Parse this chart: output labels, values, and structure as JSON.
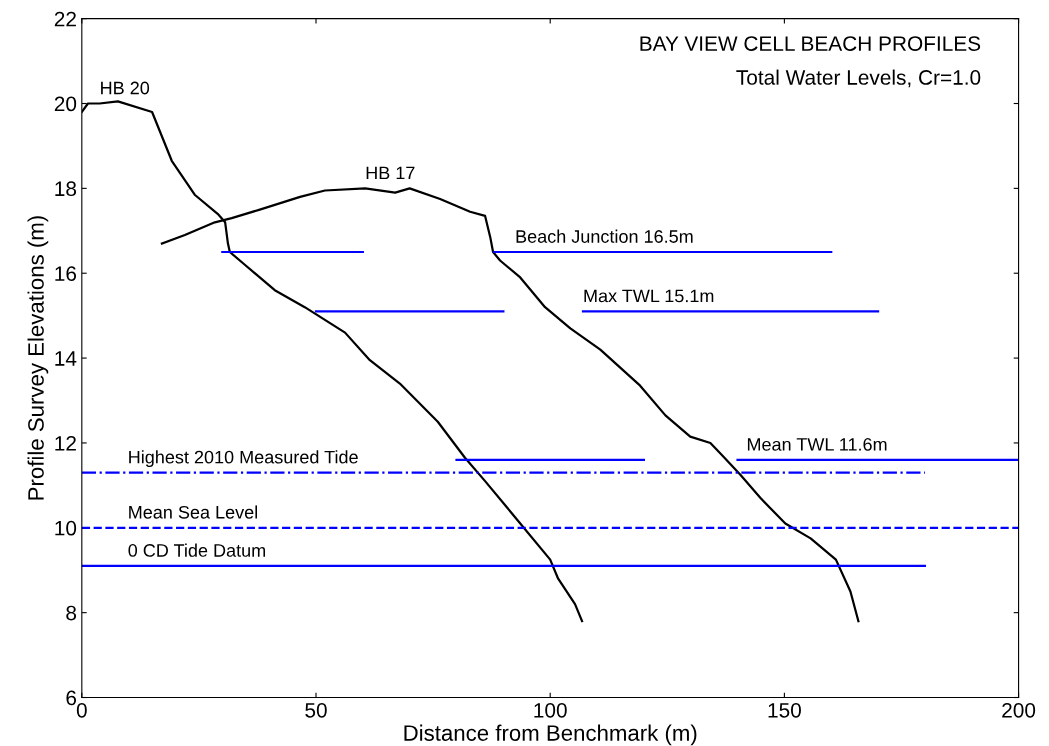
{
  "chart_data": {
    "type": "line",
    "title": "BAY VIEW CELL BEACH PROFILES",
    "subtitle": "Total Water Levels, Cr=1.0",
    "xlabel": "Distance from Benchmark (m)",
    "ylabel": "Profile Survey Elevations (m)",
    "xlim": [
      0,
      200
    ],
    "xticks": [
      0,
      50,
      100,
      150,
      200
    ],
    "ylim": [
      6,
      22
    ],
    "yticks": [
      6,
      8,
      10,
      12,
      14,
      16,
      18,
      20,
      22
    ],
    "grid": false,
    "legend": false,
    "marker": "none",
    "series": [
      {
        "color": "#000000",
        "line_style": "solid",
        "x": [
          0,
          1.3,
          3.8,
          7.7,
          15,
          19.2,
          24.1,
          29,
          30.6,
          31.2,
          31.6,
          34.8,
          41.2,
          47.6,
          56.2,
          61.5,
          67.9,
          76,
          81.8,
          86.1,
          92.5,
          100,
          101.7,
          105.3,
          106.8
        ],
        "values": [
          19.8,
          20.0,
          20.0,
          20.05,
          19.8,
          18.65,
          17.85,
          17.4,
          17.2,
          16.7,
          16.5,
          16.2,
          15.6,
          15.2,
          14.6,
          13.95,
          13.4,
          12.5,
          11.65,
          11.1,
          10.25,
          9.25,
          8.8,
          8.2,
          7.8
        ]
      },
      {
        "color": "#000000",
        "line_style": "solid",
        "x": [
          17.1,
          22,
          28.4,
          32,
          38,
          46.6,
          51.9,
          60.5,
          66.9,
          70,
          76.5,
          82.9,
          86.1,
          87.2,
          87.8,
          89.3,
          93.6,
          98.9,
          104.3,
          110.7,
          119.2,
          124.6,
          129.9,
          134.2,
          136.8,
          140.6,
          144.9,
          150.2,
          155.6,
          161,
          164.1,
          165.8
        ],
        "values": [
          16.7,
          16.9,
          17.2,
          17.3,
          17.5,
          17.8,
          17.95,
          18.0,
          17.9,
          18.0,
          17.75,
          17.45,
          17.35,
          16.85,
          16.5,
          16.3,
          15.9,
          15.2,
          14.7,
          14.2,
          13.35,
          12.65,
          12.15,
          12.0,
          11.7,
          11.25,
          10.7,
          10.1,
          9.75,
          9.25,
          8.5,
          7.8
        ]
      },
      {
        "color": "#0000ff",
        "line_style": "solid",
        "x": [
          30,
          60
        ],
        "values": [
          16.5,
          16.5
        ]
      },
      {
        "color": "#0000ff",
        "line_style": "solid",
        "x": [
          88,
          160
        ],
        "values": [
          16.5,
          16.5
        ]
      },
      {
        "color": "#0000ff",
        "line_style": "solid",
        "x": [
          50,
          90
        ],
        "values": [
          15.1,
          15.1
        ]
      },
      {
        "color": "#0000ff",
        "line_style": "solid",
        "x": [
          107,
          170
        ],
        "values": [
          15.1,
          15.1
        ]
      },
      {
        "color": "#0000ff",
        "line_style": "solid",
        "x": [
          80,
          120
        ],
        "values": [
          11.6,
          11.6
        ]
      },
      {
        "color": "#0000ff",
        "line_style": "solid",
        "x": [
          140,
          200
        ],
        "values": [
          11.6,
          11.6
        ]
      },
      {
        "color": "#0000ff",
        "line_style": "dashdot",
        "x": [
          0,
          180
        ],
        "values": [
          11.3,
          11.3
        ]
      },
      {
        "color": "#0000ff",
        "line_style": "dashed",
        "x": [
          0,
          200
        ],
        "values": [
          10.0,
          10.0
        ]
      },
      {
        "color": "#0000ff",
        "line_style": "solid",
        "x": [
          0,
          180
        ],
        "values": [
          9.1,
          9.1
        ]
      }
    ],
    "annotations": [
      {
        "text": "HB 20",
        "x": 3.8,
        "y": 20.0
      },
      {
        "text": "HB 17",
        "x": 60.5,
        "y": 18.0
      },
      {
        "text": "Beach Junction 16.5m",
        "x": 92.5,
        "y": 16.5
      },
      {
        "text": "Max TWL 15.1m",
        "x": 107,
        "y": 15.1
      },
      {
        "text": "Mean TWL 11.6m",
        "x": 141.9,
        "y": 11.6
      },
      {
        "text": "Highest 2010 Measured Tide",
        "x": 9.8,
        "y": 11.3
      },
      {
        "text": "Mean Sea Level",
        "x": 9.8,
        "y": 10.0
      },
      {
        "text": "0 CD Tide Datum",
        "x": 9.8,
        "y": 9.1
      }
    ]
  }
}
